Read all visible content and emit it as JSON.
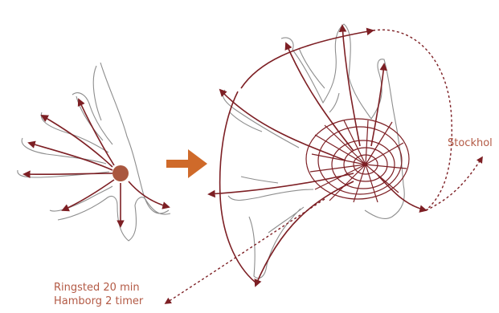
{
  "colors": {
    "arrow": "#7d1f24",
    "outline": "#8e8e8e",
    "center_dot": "#a9573f",
    "transition_arrow": "#cf6a2a",
    "label": "#b35a45"
  },
  "labels": {
    "stockholm": "Stockhol",
    "ringsted": "Ringsted 20 min",
    "hamborg": "Hamborg 2 timer"
  },
  "icons": {
    "transition": "arrow-right-icon"
  }
}
